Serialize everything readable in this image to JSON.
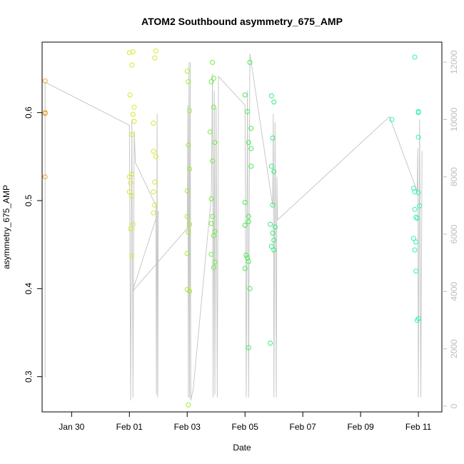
{
  "chart_data": {
    "type": "scatter",
    "title": "ATOM2 Southbound asymmetry_675_AMP",
    "xlabel": "Date",
    "ylabel": "asymmetry_675_AMP",
    "x_ticks": [
      "Jan 30",
      "Feb 01",
      "Feb 03",
      "Feb 05",
      "Feb 07",
      "Feb 09",
      "Feb 11"
    ],
    "y_ticks": [
      "0.3",
      "0.4",
      "0.5",
      "0.6"
    ],
    "y2_ticks": [
      "0",
      "2000",
      "4000",
      "6000",
      "8000",
      "10000",
      "12000"
    ],
    "xlim": [
      "2023-01-28T23:30",
      "2023-02-11T19:30"
    ],
    "ylim": [
      0.26,
      0.68
    ],
    "y2lim": [
      -200,
      12700
    ],
    "grid": false,
    "series": [
      {
        "color": "#f39c2b",
        "points": [
          [
            "2023-01-29T02:00",
            0.636
          ],
          [
            "2023-01-29T02:00",
            0.599
          ],
          [
            "2023-01-29T02:00",
            0.527
          ],
          [
            "2023-01-29T02:05",
            0.6
          ]
        ]
      },
      {
        "color": "#d7e82a",
        "points": [
          [
            "2023-02-01T00:00",
            0.668
          ],
          [
            "2023-02-01T03:00",
            0.669
          ],
          [
            "2023-02-01T02:00",
            0.654
          ],
          [
            "2023-02-01T00:30",
            0.62
          ],
          [
            "2023-02-01T04:00",
            0.606
          ],
          [
            "2023-02-01T03:00",
            0.598
          ],
          [
            "2023-02-01T04:00",
            0.59
          ],
          [
            "2023-02-01T02:00",
            0.575
          ],
          [
            "2023-02-01T02:00",
            0.53
          ],
          [
            "2023-02-01T00:00",
            0.527
          ],
          [
            "2023-02-01T01:00",
            0.52
          ],
          [
            "2023-02-01T00:00",
            0.51
          ],
          [
            "2023-02-01T02:00",
            0.505
          ],
          [
            "2023-02-01T03:00",
            0.473
          ],
          [
            "2023-02-01T01:00",
            0.468
          ],
          [
            "2023-02-01T02:00",
            0.437
          ],
          [
            "2023-02-01T22:00",
            0.67
          ],
          [
            "2023-02-01T21:00",
            0.662
          ],
          [
            "2023-02-01T20:00",
            0.588
          ],
          [
            "2023-02-01T20:00",
            0.556
          ],
          [
            "2023-02-01T22:00",
            0.55
          ],
          [
            "2023-02-01T21:00",
            0.521
          ],
          [
            "2023-02-01T20:00",
            0.51
          ],
          [
            "2023-02-01T21:00",
            0.495
          ],
          [
            "2023-02-01T20:00",
            0.486
          ]
        ]
      },
      {
        "color": "#a3ec2c",
        "points": [
          [
            "2023-02-03T00:00",
            0.647
          ],
          [
            "2023-02-03T01:00",
            0.635
          ],
          [
            "2023-02-03T02:00",
            0.602
          ],
          [
            "2023-02-03T01:00",
            0.563
          ],
          [
            "2023-02-03T02:00",
            0.536
          ],
          [
            "2023-02-03T00:00",
            0.511
          ],
          [
            "2023-02-03T00:00",
            0.482
          ],
          [
            "2023-02-03T02:00",
            0.473
          ],
          [
            "2023-02-03T01:00",
            0.464
          ],
          [
            "2023-02-03T00:00",
            0.44
          ],
          [
            "2023-02-03T00:00",
            0.399
          ],
          [
            "2023-02-03T02:00",
            0.397
          ],
          [
            "2023-02-03T01:00",
            0.268
          ]
        ]
      },
      {
        "color": "#6df03a",
        "points": [
          [
            "2023-02-03T21:00",
            0.657
          ],
          [
            "2023-02-03T22:00",
            0.639
          ],
          [
            "2023-02-03T20:00",
            0.635
          ],
          [
            "2023-02-03T22:00",
            0.606
          ],
          [
            "2023-02-03T19:00",
            0.578
          ],
          [
            "2023-02-03T23:00",
            0.566
          ],
          [
            "2023-02-03T21:00",
            0.545
          ],
          [
            "2023-02-03T20:00",
            0.502
          ],
          [
            "2023-02-03T21:00",
            0.482
          ],
          [
            "2023-02-03T20:00",
            0.474
          ],
          [
            "2023-02-03T23:00",
            0.465
          ],
          [
            "2023-02-03T22:00",
            0.46
          ],
          [
            "2023-02-03T20:00",
            0.439
          ],
          [
            "2023-02-03T23:00",
            0.43
          ],
          [
            "2023-02-03T22:00",
            0.424
          ]
        ]
      },
      {
        "color": "#41f050",
        "points": [
          [
            "2023-02-05T04:00",
            0.657
          ],
          [
            "2023-02-05T00:00",
            0.62
          ],
          [
            "2023-02-05T02:00",
            0.601
          ],
          [
            "2023-02-05T05:00",
            0.582
          ],
          [
            "2023-02-05T03:00",
            0.566
          ],
          [
            "2023-02-05T05:00",
            0.559
          ],
          [
            "2023-02-05T05:00",
            0.539
          ],
          [
            "2023-02-05T00:00",
            0.498
          ],
          [
            "2023-02-05T03:00",
            0.482
          ],
          [
            "2023-02-05T03:00",
            0.476
          ],
          [
            "2023-02-05T00:00",
            0.472
          ],
          [
            "2023-02-05T01:00",
            0.438
          ],
          [
            "2023-02-05T02:00",
            0.435
          ],
          [
            "2023-02-05T03:00",
            0.431
          ],
          [
            "2023-02-05T00:00",
            0.423
          ],
          [
            "2023-02-05T04:00",
            0.4
          ],
          [
            "2023-02-05T03:00",
            0.333
          ]
        ]
      },
      {
        "color": "#30ee78",
        "points": [
          [
            "2023-02-05T22:00",
            0.619
          ],
          [
            "2023-02-06T00:00",
            0.612
          ],
          [
            "2023-02-05T23:00",
            0.571
          ],
          [
            "2023-02-05T22:00",
            0.539
          ],
          [
            "2023-02-06T00:00",
            0.533
          ],
          [
            "2023-02-05T23:00",
            0.495
          ],
          [
            "2023-02-05T21:00",
            0.473
          ],
          [
            "2023-02-06T01:00",
            0.47
          ],
          [
            "2023-02-05T23:00",
            0.463
          ],
          [
            "2023-02-06T00:00",
            0.455
          ],
          [
            "2023-02-05T22:00",
            0.448
          ],
          [
            "2023-02-06T00:00",
            0.444
          ],
          [
            "2023-02-05T21:00",
            0.338
          ]
        ]
      },
      {
        "color": "#2ef0bc",
        "points": [
          [
            "2023-02-10T02:00",
            0.592
          ],
          [
            "2023-02-10T21:00",
            0.663
          ],
          [
            "2023-02-11T00:00",
            0.601
          ],
          [
            "2023-02-11T00:00",
            0.6
          ],
          [
            "2023-02-11T00:00",
            0.572
          ],
          [
            "2023-02-10T20:00",
            0.514
          ],
          [
            "2023-02-10T21:00",
            0.51
          ],
          [
            "2023-02-11T00:00",
            0.509
          ],
          [
            "2023-02-11T01:00",
            0.494
          ],
          [
            "2023-02-10T21:00",
            0.49
          ],
          [
            "2023-02-10T22:00",
            0.481
          ],
          [
            "2023-02-10T23:00",
            0.48
          ],
          [
            "2023-02-10T20:00",
            0.457
          ],
          [
            "2023-02-10T22:00",
            0.453
          ],
          [
            "2023-02-10T21:00",
            0.444
          ],
          [
            "2023-02-10T22:00",
            0.42
          ],
          [
            "2023-02-11T00:00",
            0.366
          ],
          [
            "2023-02-10T23:00",
            0.364
          ]
        ]
      }
    ],
    "secondary_line": {
      "color": "#c8c8c8",
      "axis": "right",
      "points": [
        [
          "2023-01-29T02:00",
          1000
        ],
        [
          "2023-01-29T02:00",
          11300
        ],
        [
          "2023-02-01T00:00",
          9800
        ],
        [
          "2023-02-01T01:00",
          200
        ],
        [
          "2023-02-01T02:00",
          10000
        ],
        [
          "2023-02-01T03:00",
          300
        ],
        [
          "2023-02-01T04:00",
          9600
        ],
        [
          "2023-02-01T05:00",
          8500
        ],
        [
          "2023-02-01T22:00",
          7000
        ],
        [
          "2023-02-01T22:30",
          400
        ],
        [
          "2023-02-01T23:00",
          10200
        ],
        [
          "2023-02-01T23:30",
          300
        ],
        [
          "2023-02-02T00:00",
          6800
        ],
        [
          "2023-02-01T02:30",
          4000
        ],
        [
          "2023-02-03T00:00",
          6200
        ],
        [
          "2023-02-03T00:30",
          10500
        ],
        [
          "2023-02-03T01:00",
          300
        ],
        [
          "2023-02-03T01:30",
          12000
        ],
        [
          "2023-02-03T02:00",
          300
        ],
        [
          "2023-02-03T02:30",
          12000
        ],
        [
          "2023-02-03T03:00",
          200
        ],
        [
          "2023-02-03T05:00",
          600
        ],
        [
          "2023-02-03T20:00",
          7300
        ],
        [
          "2023-02-03T21:00",
          11600
        ],
        [
          "2023-02-03T21:30",
          300
        ],
        [
          "2023-02-03T22:30",
          11000
        ],
        [
          "2023-02-03T23:00",
          400
        ],
        [
          "2023-02-04T00:00",
          10400
        ],
        [
          "2023-02-04T01:00",
          300
        ],
        [
          "2023-02-04T02:00",
          11500
        ],
        [
          "2023-02-05T00:00",
          10500
        ],
        [
          "2023-02-05T01:00",
          300
        ],
        [
          "2023-02-05T02:00",
          11000
        ],
        [
          "2023-02-05T03:00",
          300
        ],
        [
          "2023-02-05T04:00",
          12300
        ],
        [
          "2023-02-05T23:00",
          7000
        ],
        [
          "2023-02-05T23:30",
          10200
        ],
        [
          "2023-02-06T00:00",
          300
        ],
        [
          "2023-02-06T01:00",
          9900
        ],
        [
          "2023-02-06T02:00",
          300
        ],
        [
          "2023-02-06T02:30",
          8000
        ],
        [
          "2023-02-06T03:00",
          6500
        ],
        [
          "2023-02-10T00:00",
          10100
        ],
        [
          "2023-02-10T23:00",
          7500
        ],
        [
          "2023-02-10T23:30",
          9000
        ],
        [
          "2023-02-11T00:00",
          300
        ],
        [
          "2023-02-11T01:00",
          10000
        ],
        [
          "2023-02-11T02:00",
          300
        ],
        [
          "2023-02-11T03:00",
          8900
        ]
      ]
    }
  }
}
